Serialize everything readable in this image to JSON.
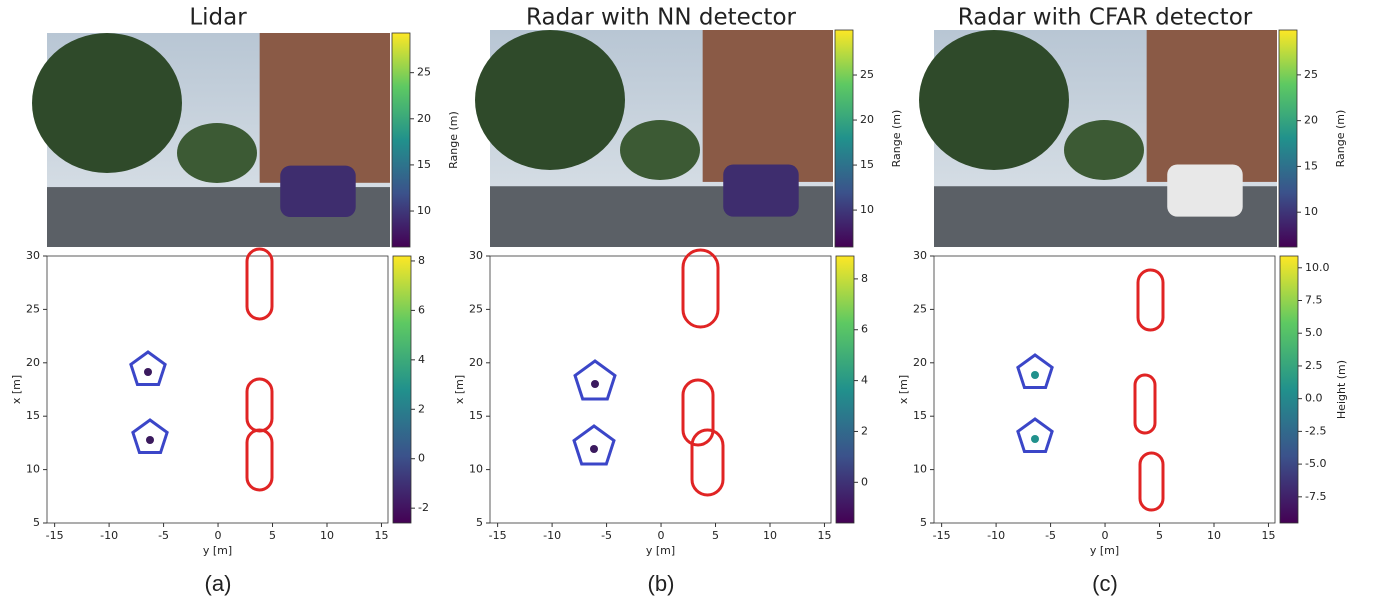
{
  "panels": [
    {
      "title": "Lidar",
      "caption": "(a)",
      "image_colorbar": {
        "label": "Range (m)",
        "lim": [
          6.1,
          29.3
        ],
        "ticks": [
          10,
          15,
          20,
          25
        ]
      },
      "plot": {
        "xlabel": "y [m]",
        "ylabel": "x [m]",
        "xlim": [
          -15.7,
          15.6
        ],
        "ylim": [
          5,
          30
        ],
        "xticks": [
          -15,
          -10,
          -5,
          0,
          5,
          10,
          15
        ],
        "yticks": [
          5,
          10,
          15,
          20,
          25,
          30
        ],
        "colorbar": {
          "lim": [
            -2.6,
            8.2
          ],
          "ticks": [
            -2,
            0,
            2,
            4,
            6,
            8
          ]
        }
      }
    },
    {
      "title": "Radar with NN detector",
      "caption": "(b)",
      "image_colorbar": {
        "label": "Range (m)",
        "lim": [
          5.9,
          30
        ],
        "ticks": [
          10,
          15,
          20,
          25
        ]
      },
      "plot": {
        "xlabel": "y [m]",
        "ylabel": "x [m]",
        "xlim": [
          -15.7,
          15.6
        ],
        "ylim": [
          5,
          30
        ],
        "xticks": [
          -15,
          -10,
          -5,
          0,
          5,
          10,
          15
        ],
        "yticks": [
          5,
          10,
          15,
          20,
          25,
          30
        ],
        "colorbar": {
          "lim": [
            -1.6,
            8.9
          ],
          "ticks": [
            0,
            2,
            4,
            6,
            8
          ]
        }
      }
    },
    {
      "title": "Radar with CFAR detector",
      "caption": "(c)",
      "image_colorbar": {
        "label": "Range (m)",
        "lim": [
          6.2,
          29.9
        ],
        "ticks": [
          10,
          15,
          20,
          25
        ]
      },
      "plot": {
        "xlabel": "y [m]",
        "ylabel": "x [m]",
        "xlim": [
          -15.7,
          15.6
        ],
        "ylim": [
          5,
          30
        ],
        "xticks": [
          -15,
          -10,
          -5,
          0,
          5,
          10,
          15
        ],
        "yticks": [
          5,
          10,
          15,
          20,
          25,
          30
        ],
        "colorbar": {
          "label": "Height (m)",
          "lim": [
            -9.5,
            10.9
          ],
          "ticks": [
            {
              "value": -7.5,
              "label": "-7.5"
            },
            {
              "value": -5,
              "label": "-5.0"
            },
            {
              "value": -2.5,
              "label": "-2.5"
            },
            {
              "value": 0,
              "label": "0.0"
            },
            {
              "value": 2.5,
              "label": "2.5"
            },
            {
              "value": 5,
              "label": "5.0"
            },
            {
              "value": 7.5,
              "label": "7.5"
            },
            {
              "value": 10,
              "label": "10.0"
            }
          ]
        }
      }
    }
  ]
}
